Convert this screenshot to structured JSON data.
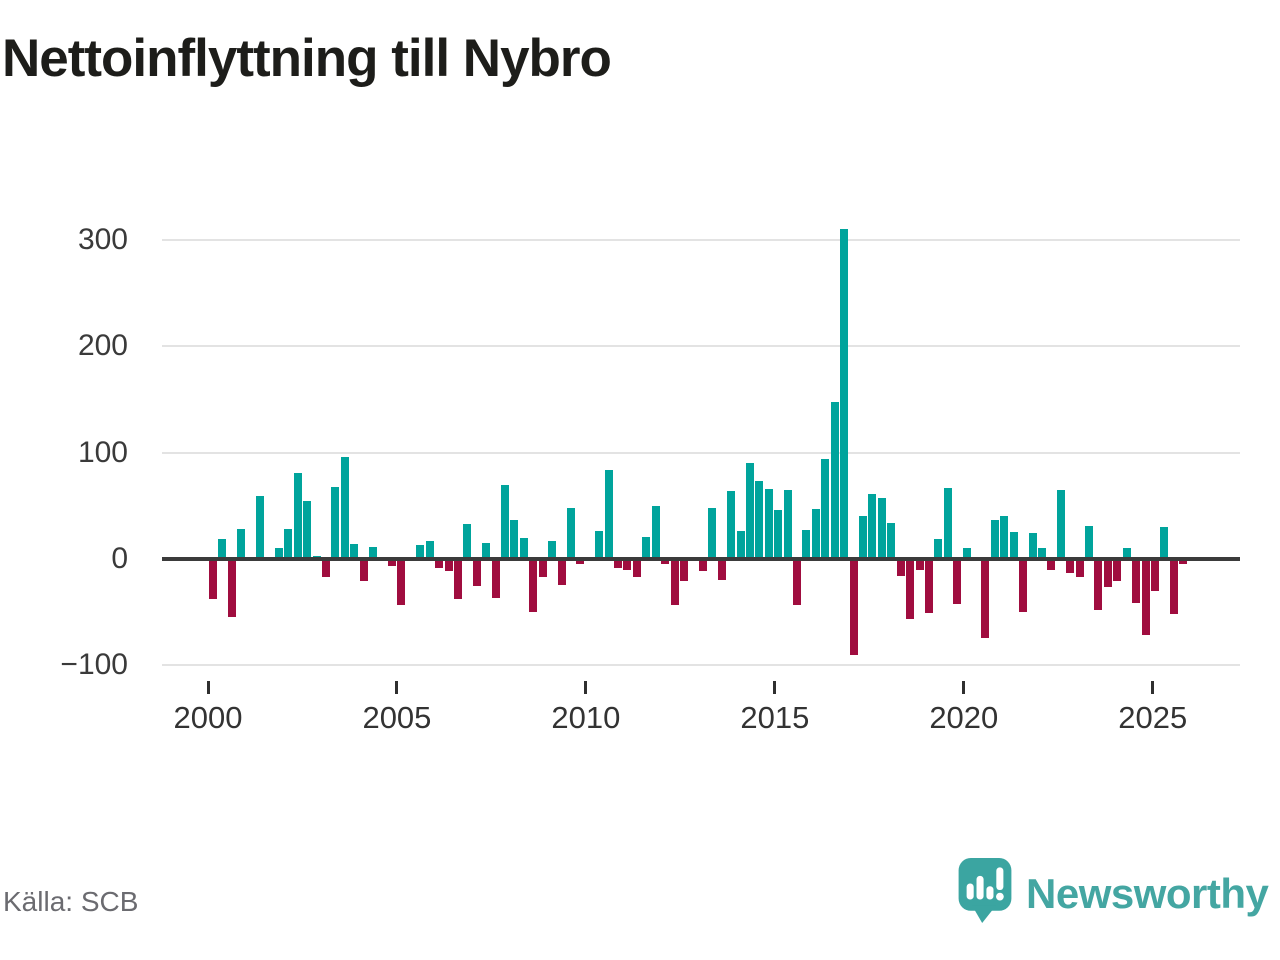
{
  "title": "Nettoinflyttning till Nybro",
  "source": "Källa: SCB",
  "logo": {
    "text": "Newsworthy"
  },
  "colors": {
    "positive": "#00a49c",
    "negative": "#a00d3f",
    "logo_teal": "#3ba5a1",
    "zero_line": "#3b3b3b",
    "gridline": "#e3e3e3",
    "title_text": "#1d1d1a",
    "axis_text": "#333333",
    "source_text": "#6b6b70"
  },
  "chart_data": {
    "type": "bar",
    "title": "Nettoinflyttning till Nybro",
    "xlabel": "",
    "ylabel": "",
    "frequency": "quarterly",
    "start_period": "2000 Q1",
    "end_period": "2025 Q4",
    "ylim": [
      -110,
      315
    ],
    "grid": true,
    "yticks": [
      {
        "value": 300,
        "label": "300"
      },
      {
        "value": 200,
        "label": "200"
      },
      {
        "value": 100,
        "label": "100"
      },
      {
        "value": 0,
        "label": "0"
      },
      {
        "value": -100,
        "label": "−100"
      }
    ],
    "xticks": [
      {
        "year": 2000,
        "label": "2000"
      },
      {
        "year": 2005,
        "label": "2005"
      },
      {
        "year": 2010,
        "label": "2010"
      },
      {
        "year": 2015,
        "label": "2015"
      },
      {
        "year": 2020,
        "label": "2020"
      },
      {
        "year": 2025,
        "label": "2025"
      }
    ],
    "values": [
      -38,
      19,
      -55,
      28,
      0,
      59,
      0,
      10,
      28,
      81,
      55,
      3,
      -17,
      68,
      96,
      14,
      -21,
      11,
      0,
      -7,
      -43,
      0,
      13,
      17,
      -8,
      -11,
      -38,
      33,
      -25,
      15,
      -37,
      70,
      37,
      20,
      -50,
      -17,
      17,
      -24,
      48,
      -5,
      0,
      26,
      84,
      -8,
      -10,
      -17,
      21,
      50,
      -5,
      -43,
      -21,
      2,
      -11,
      48,
      -20,
      64,
      26,
      90,
      73,
      66,
      46,
      65,
      -43,
      27,
      47,
      94,
      148,
      310,
      -90,
      40,
      61,
      57,
      34,
      -16,
      -56,
      -10,
      -51,
      19,
      67,
      -42,
      10,
      0,
      -74,
      37,
      40,
      25,
      -50,
      24,
      10,
      -10,
      65,
      -13,
      -17,
      31,
      -48,
      -26,
      -21,
      10,
      -41,
      -71,
      -30,
      30,
      -52,
      -5
    ]
  }
}
